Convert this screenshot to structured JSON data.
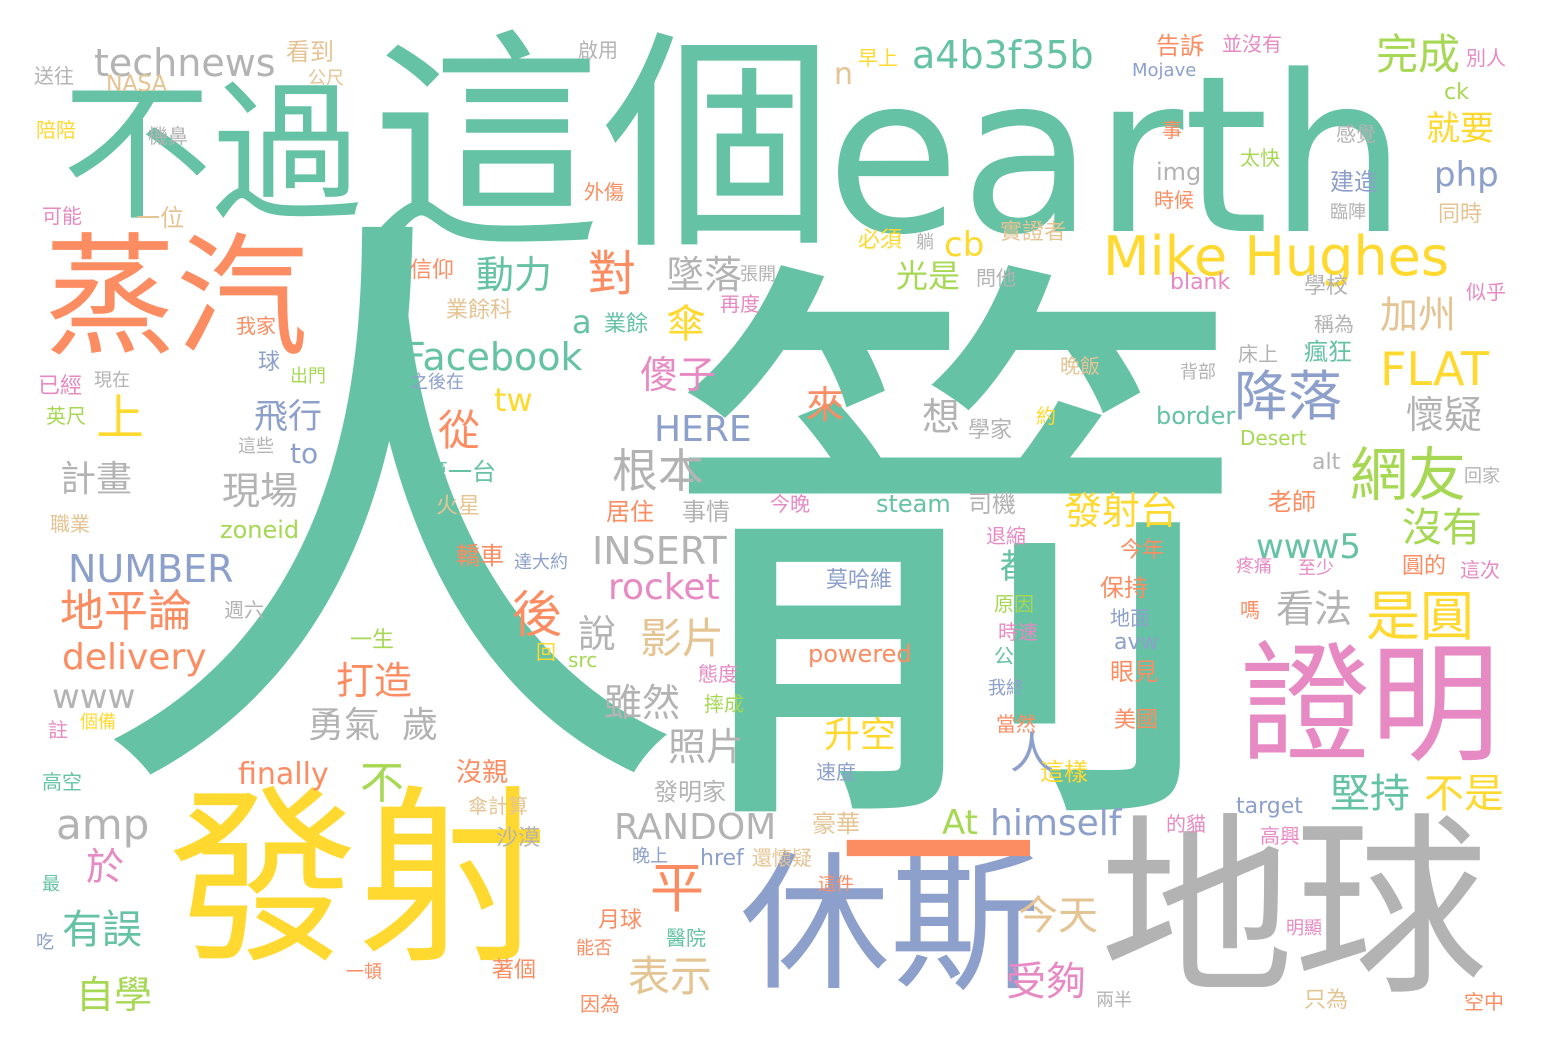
{
  "words": [
    {
      "text": "人",
      "color": "#66c2a5"
    },
    {
      "text": "箭",
      "color": "#66c2a5"
    },
    {
      "text": "這個",
      "color": "#66c2a5"
    },
    {
      "text": "earth",
      "color": "#66c2a5"
    },
    {
      "text": "發射",
      "color": "#ffd92f"
    },
    {
      "text": "地球",
      "color": "#b3b3b3"
    },
    {
      "text": "休斯",
      "color": "#8da0cb"
    },
    {
      "text": "不過",
      "color": "#66c2a5"
    },
    {
      "text": "蒸汽",
      "color": "#fc8d62"
    },
    {
      "text": "證明",
      "color": "#e78ac3"
    },
    {
      "text": "一",
      "color": "#fc8d62"
    },
    {
      "text": "Mike Hughes",
      "color": "#ffd92f"
    },
    {
      "text": "technews",
      "color": "#b3b3b3"
    },
    {
      "text": "a4b3f35b",
      "color": "#66c2a5"
    },
    {
      "text": "完成",
      "color": "#a6d854"
    },
    {
      "text": "Facebook",
      "color": "#66c2a5"
    },
    {
      "text": "FLAT",
      "color": "#ffd92f"
    },
    {
      "text": "降落",
      "color": "#8da0cb"
    },
    {
      "text": "網友",
      "color": "#a6d854"
    },
    {
      "text": "是圓",
      "color": "#ffd92f"
    },
    {
      "text": "地平論",
      "color": "#fc8d62"
    },
    {
      "text": "NUMBER",
      "color": "#8da0cb"
    },
    {
      "text": "delivery",
      "color": "#fc8d62"
    },
    {
      "text": "rocket",
      "color": "#e78ac3"
    },
    {
      "text": "INSERT",
      "color": "#b3b3b3"
    },
    {
      "text": "RANDOM",
      "color": "#b3b3b3"
    },
    {
      "text": "himself",
      "color": "#8da0cb"
    },
    {
      "text": "amp",
      "color": "#b3b3b3"
    },
    {
      "text": "HERE",
      "color": "#8da0cb"
    },
    {
      "text": "www",
      "color": "#b3b3b3"
    },
    {
      "text": "www5",
      "color": "#66c2a5"
    },
    {
      "text": "finally",
      "color": "#fc8d62"
    },
    {
      "text": "php",
      "color": "#8da0cb"
    },
    {
      "text": "cb",
      "color": "#ffd92f"
    },
    {
      "text": "動力",
      "color": "#66c2a5"
    },
    {
      "text": "墜落",
      "color": "#b3b3b3"
    },
    {
      "text": "對",
      "color": "#fc8d62"
    },
    {
      "text": "光是",
      "color": "#a6d854"
    },
    {
      "text": "加州",
      "color": "#e5c494"
    },
    {
      "text": "就要",
      "color": "#ffd92f"
    },
    {
      "text": "上",
      "color": "#ffd92f"
    },
    {
      "text": "從",
      "color": "#fc8d62"
    },
    {
      "text": "飛行",
      "color": "#8da0cb"
    },
    {
      "text": "現場",
      "color": "#b3b3b3"
    },
    {
      "text": "計畫",
      "color": "#b3b3b3"
    },
    {
      "text": "根本",
      "color": "#b3b3b3"
    },
    {
      "text": "想",
      "color": "#b3b3b3"
    },
    {
      "text": "懷疑",
      "color": "#b3b3b3"
    },
    {
      "text": "後",
      "color": "#fc8d62"
    },
    {
      "text": "說",
      "color": "#b3b3b3"
    },
    {
      "text": "影片",
      "color": "#e5c494"
    },
    {
      "text": "看法",
      "color": "#b3b3b3"
    },
    {
      "text": "發射台",
      "color": "#ffd92f"
    },
    {
      "text": "沒有",
      "color": "#a6d854"
    },
    {
      "text": "打造",
      "color": "#fc8d62"
    },
    {
      "text": "勇氣",
      "color": "#b3b3b3"
    },
    {
      "text": "歲",
      "color": "#b3b3b3"
    },
    {
      "text": "雖然",
      "color": "#b3b3b3"
    },
    {
      "text": "照片",
      "color": "#b3b3b3"
    },
    {
      "text": "升空",
      "color": "#ffd92f"
    },
    {
      "text": "不",
      "color": "#a6d854"
    },
    {
      "text": "人",
      "color": "#8da0cb"
    },
    {
      "text": "堅持",
      "color": "#66c2a5"
    },
    {
      "text": "不是",
      "color": "#ffd92f"
    },
    {
      "text": "平",
      "color": "#fc8d62"
    },
    {
      "text": "於",
      "color": "#e78ac3"
    },
    {
      "text": "有誤",
      "color": "#66c2a5"
    },
    {
      "text": "自學",
      "color": "#a6d854"
    },
    {
      "text": "表示",
      "color": "#e5c494"
    },
    {
      "text": "今天",
      "color": "#e5c494"
    },
    {
      "text": "受夠",
      "color": "#e78ac3"
    },
    {
      "text": "At",
      "color": "#a6d854"
    },
    {
      "text": "傘",
      "color": "#ffd92f"
    },
    {
      "text": "傻子",
      "color": "#e78ac3"
    },
    {
      "text": "來",
      "color": "#fc8d62"
    },
    {
      "text": "tw",
      "color": "#ffd92f"
    },
    {
      "text": "to",
      "color": "#8da0cb"
    },
    {
      "text": "n",
      "color": "#e5c494"
    },
    {
      "text": "a",
      "color": "#66c2a5"
    },
    {
      "text": "業餘",
      "color": "#66c2a5"
    },
    {
      "text": "都",
      "color": "#66c2a5"
    },
    {
      "text": "看到",
      "color": "#e5c494"
    },
    {
      "text": "公尺",
      "color": "#e5c494"
    },
    {
      "text": "送往",
      "color": "#b3b3b3"
    },
    {
      "text": "NASA",
      "color": "#e5c494"
    },
    {
      "text": "陪陪",
      "color": "#ffd92f"
    },
    {
      "text": "機鼻",
      "color": "#b3b3b3"
    },
    {
      "text": "可能",
      "color": "#e78ac3"
    },
    {
      "text": "一位",
      "color": "#e5c494"
    },
    {
      "text": "啟用",
      "color": "#b3b3b3"
    },
    {
      "text": "早上",
      "color": "#ffd92f"
    },
    {
      "text": "告訴",
      "color": "#fc8d62"
    },
    {
      "text": "並沒有",
      "color": "#e78ac3"
    },
    {
      "text": "別人",
      "color": "#e78ac3"
    },
    {
      "text": "Mojave",
      "color": "#8da0cb"
    },
    {
      "text": "ck",
      "color": "#a6d854"
    },
    {
      "text": "事",
      "color": "#fc8d62"
    },
    {
      "text": "感覺",
      "color": "#b3b3b3"
    },
    {
      "text": "太快",
      "color": "#a6d854"
    },
    {
      "text": "img",
      "color": "#b3b3b3"
    },
    {
      "text": "時候",
      "color": "#fc8d62"
    },
    {
      "text": "建造",
      "color": "#8da0cb"
    },
    {
      "text": "臨陣",
      "color": "#b3b3b3"
    },
    {
      "text": "同時",
      "color": "#e5c494"
    },
    {
      "text": "外傷",
      "color": "#fc8d62"
    },
    {
      "text": "必須",
      "color": "#ffd92f"
    },
    {
      "text": "躺",
      "color": "#b3b3b3"
    },
    {
      "text": "實證者",
      "color": "#e5c494"
    },
    {
      "text": "張開",
      "color": "#b3b3b3"
    },
    {
      "text": "問他",
      "color": "#b3b3b3"
    },
    {
      "text": "信仰",
      "color": "#fc8d62"
    },
    {
      "text": "業餘科",
      "color": "#e5c494"
    },
    {
      "text": "再度",
      "color": "#e78ac3"
    },
    {
      "text": "blank",
      "color": "#e78ac3"
    },
    {
      "text": "學校",
      "color": "#b3b3b3"
    },
    {
      "text": "似乎",
      "color": "#e78ac3"
    },
    {
      "text": "稱為",
      "color": "#b3b3b3"
    },
    {
      "text": "瘋狂",
      "color": "#66c2a5"
    },
    {
      "text": "我家",
      "color": "#fc8d62"
    },
    {
      "text": "球",
      "color": "#8da0cb"
    },
    {
      "text": "出門",
      "color": "#a6d854"
    },
    {
      "text": "現在",
      "color": "#b3b3b3"
    },
    {
      "text": "已經",
      "color": "#e78ac3"
    },
    {
      "text": "英尺",
      "color": "#a6d854"
    },
    {
      "text": "之後在",
      "color": "#8da0cb"
    },
    {
      "text": "晚飯",
      "color": "#e5c494"
    },
    {
      "text": "背部",
      "color": "#b3b3b3"
    },
    {
      "text": "床上",
      "color": "#b3b3b3"
    },
    {
      "text": "這些",
      "color": "#b3b3b3"
    },
    {
      "text": "學家",
      "color": "#b3b3b3"
    },
    {
      "text": "約",
      "color": "#ffd92f"
    },
    {
      "text": "border",
      "color": "#66c2a5"
    },
    {
      "text": "Desert",
      "color": "#a6d854"
    },
    {
      "text": "第一台",
      "color": "#66c2a5"
    },
    {
      "text": "alt",
      "color": "#b3b3b3"
    },
    {
      "text": "回家",
      "color": "#b3b3b3"
    },
    {
      "text": "火星",
      "color": "#e5c494"
    },
    {
      "text": "職業",
      "color": "#e5c494"
    },
    {
      "text": "zoneid",
      "color": "#a6d854"
    },
    {
      "text": "居住",
      "color": "#fc8d62"
    },
    {
      "text": "事情",
      "color": "#b3b3b3"
    },
    {
      "text": "今晚",
      "color": "#e78ac3"
    },
    {
      "text": "steam",
      "color": "#66c2a5"
    },
    {
      "text": "司機",
      "color": "#b3b3b3"
    },
    {
      "text": "老師",
      "color": "#fc8d62"
    },
    {
      "text": "退縮",
      "color": "#e78ac3"
    },
    {
      "text": "今年",
      "color": "#fc8d62"
    },
    {
      "text": "轎車",
      "color": "#fc8d62"
    },
    {
      "text": "達大約",
      "color": "#8da0cb"
    },
    {
      "text": "週六",
      "color": "#b3b3b3"
    },
    {
      "text": "莫哈維",
      "color": "#8da0cb"
    },
    {
      "text": "保持",
      "color": "#fc8d62"
    },
    {
      "text": "疼痛",
      "color": "#e78ac3"
    },
    {
      "text": "至少",
      "color": "#e78ac3"
    },
    {
      "text": "圓的",
      "color": "#fc8d62"
    },
    {
      "text": "這次",
      "color": "#e78ac3"
    },
    {
      "text": "原因",
      "color": "#a6d854"
    },
    {
      "text": "地面",
      "color": "#8da0cb"
    },
    {
      "text": "嗎",
      "color": "#fc8d62"
    },
    {
      "text": "一生",
      "color": "#a6d854"
    },
    {
      "text": "回",
      "color": "#ffd92f"
    },
    {
      "text": "src",
      "color": "#a6d854"
    },
    {
      "text": "時速",
      "color": "#e78ac3"
    },
    {
      "text": "avw",
      "color": "#8da0cb"
    },
    {
      "text": "powered",
      "color": "#fc8d62"
    },
    {
      "text": "公里",
      "color": "#66c2a5"
    },
    {
      "text": "眼見",
      "color": "#fc8d62"
    },
    {
      "text": "態度",
      "color": "#e78ac3"
    },
    {
      "text": "我終",
      "color": "#8da0cb"
    },
    {
      "text": "註",
      "color": "#e78ac3"
    },
    {
      "text": "個備",
      "color": "#ffd92f"
    },
    {
      "text": "摔成",
      "color": "#a6d854"
    },
    {
      "text": "當然",
      "color": "#fc8d62"
    },
    {
      "text": "美國",
      "color": "#fc8d62"
    },
    {
      "text": "高空",
      "color": "#66c2a5"
    },
    {
      "text": "沒親",
      "color": "#fc8d62"
    },
    {
      "text": "速度",
      "color": "#8da0cb"
    },
    {
      "text": "這樣",
      "color": "#ffd92f"
    },
    {
      "text": "傘計算",
      "color": "#e5c494"
    },
    {
      "text": "發明家",
      "color": "#b3b3b3"
    },
    {
      "text": "target",
      "color": "#8da0cb"
    },
    {
      "text": "的貓",
      "color": "#e78ac3"
    },
    {
      "text": "沙漠",
      "color": "#b3b3b3"
    },
    {
      "text": "豪華",
      "color": "#e5c494"
    },
    {
      "text": "高興",
      "color": "#e78ac3"
    },
    {
      "text": "晚上",
      "color": "#8da0cb"
    },
    {
      "text": "href",
      "color": "#8da0cb"
    },
    {
      "text": "還懷疑",
      "color": "#e5c494"
    },
    {
      "text": "最",
      "color": "#66c2a5"
    },
    {
      "text": "這件",
      "color": "#fc8d62"
    },
    {
      "text": "明顯",
      "color": "#e78ac3"
    },
    {
      "text": "月球",
      "color": "#fc8d62"
    },
    {
      "text": "醫院",
      "color": "#66c2a5"
    },
    {
      "text": "吃",
      "color": "#8da0cb"
    },
    {
      "text": "能否",
      "color": "#fc8d62"
    },
    {
      "text": "著個",
      "color": "#fc8d62"
    },
    {
      "text": "一頓",
      "color": "#fc8d62"
    },
    {
      "text": "兩半",
      "color": "#b3b3b3"
    },
    {
      "text": "只為",
      "color": "#e5c494"
    },
    {
      "text": "空中",
      "color": "#fc8d62"
    },
    {
      "text": "因為",
      "color": "#fc8d62"
    }
  ]
}
